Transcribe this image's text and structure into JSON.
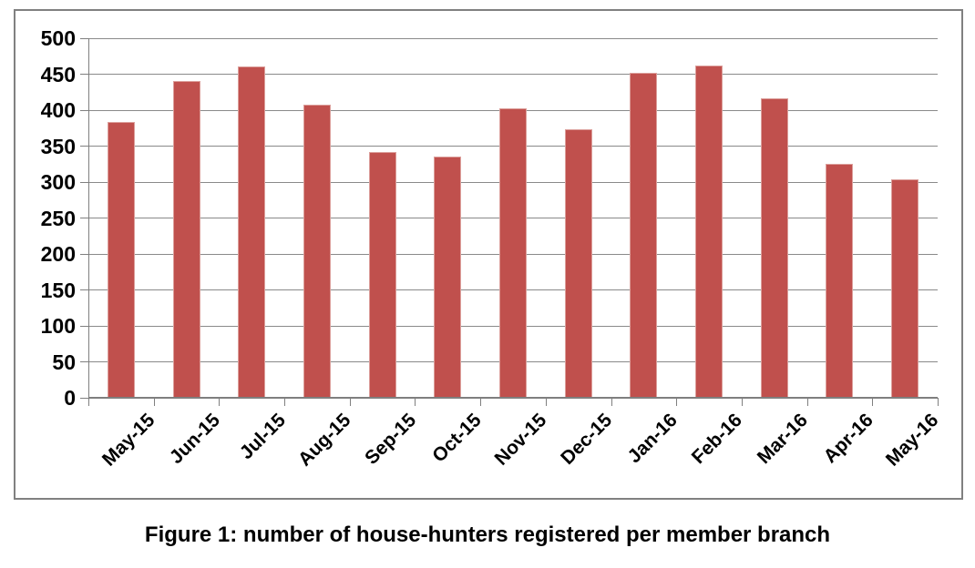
{
  "figure": {
    "caption": "Figure 1: number of house-hunters registered per member branch"
  },
  "chart_data": {
    "type": "bar",
    "title": "",
    "caption": "Figure 1: number of house-hunters registered per member branch",
    "categories": [
      "May-15",
      "Jun-15",
      "Jul-15",
      "Aug-15",
      "Sep-15",
      "Oct-15",
      "Nov-15",
      "Dec-15",
      "Jan-16",
      "Feb-16",
      "Mar-16",
      "Apr-16",
      "May-16"
    ],
    "values": [
      383,
      440,
      461,
      408,
      342,
      336,
      403,
      373,
      452,
      462,
      416,
      325,
      304
    ],
    "xlabel": "",
    "ylabel": "",
    "ylim": [
      0,
      500
    ],
    "ytick_step": 50,
    "ytick_labels": [
      "0",
      "50",
      "100",
      "150",
      "200",
      "250",
      "300",
      "350",
      "400",
      "450",
      "500"
    ],
    "grid": true,
    "legend": "none",
    "colors": {
      "bar_fill": "#c0504d",
      "bar_border": "#dc9f9b",
      "gridline": "#8a8a8a",
      "axis_line": "#7f7f7f",
      "frame_border": "#808080",
      "label_text": "#000000"
    }
  }
}
